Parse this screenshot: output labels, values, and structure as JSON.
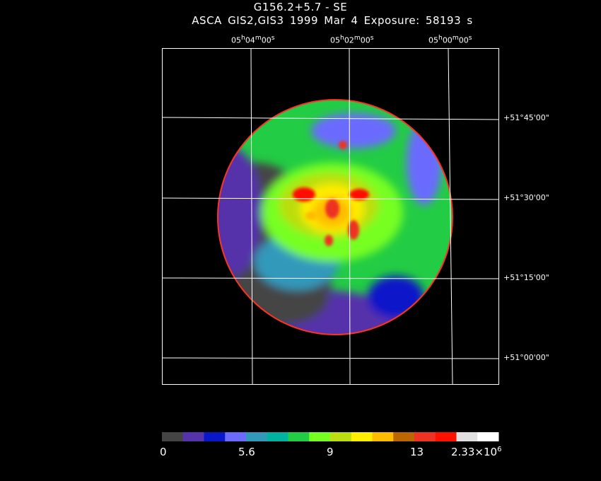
{
  "title": "G156.2+5.7 - SE",
  "subtitle": "ASCA GIS2,GIS3   1999 Mar  4    Exposure: 58193 s",
  "ra_labels": [
    "05h04m00s",
    "05h02m00s",
    "05h00m00s"
  ],
  "dec_labels": [
    "+51°45'00\"",
    "+51°30'00\"",
    "+51°15'00\"",
    "+51°00'00\""
  ],
  "colorbar": {
    "labels": [
      "0",
      "5.6",
      "9",
      "13",
      "2.33×10^6"
    ],
    "colors": [
      "#444444",
      "#5533aa",
      "#0a17c8",
      "#6b6bff",
      "#3399bb",
      "#00b3a0",
      "#22cc44",
      "#77ff22",
      "#bbdd11",
      "#ffee00",
      "#ffbb00",
      "#bb6600",
      "#ee3322",
      "#ff1100",
      "#e0e0e0",
      "#ffffff"
    ]
  }
}
